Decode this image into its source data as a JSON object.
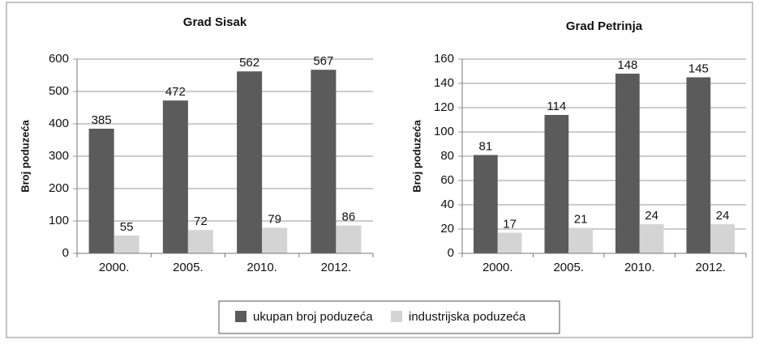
{
  "chart_data": [
    {
      "type": "bar",
      "title": "Grad Sisak",
      "y_label": "Broj poduzeća",
      "categories": [
        "2000.",
        "2005.",
        "2010.",
        "2012."
      ],
      "series": [
        {
          "name": "ukupan broj poduzeća",
          "color": "#5b5b5b",
          "values": [
            385,
            472,
            562,
            567
          ]
        },
        {
          "name": "industrijska poduzeća",
          "color": "#d4d4d4",
          "values": [
            55,
            72,
            79,
            86
          ]
        }
      ],
      "ylim": [
        0,
        600
      ],
      "yticks": [
        0,
        100,
        200,
        300,
        400,
        500,
        600
      ],
      "grid": true,
      "legend": "bottom"
    },
    {
      "type": "bar",
      "title": "Grad Petrinja",
      "y_label": "Broj poduzeća",
      "categories": [
        "2000.",
        "2005.",
        "2010.",
        "2012."
      ],
      "series": [
        {
          "name": "ukupan broj poduzeća",
          "color": "#5b5b5b",
          "values": [
            81,
            114,
            148,
            145
          ]
        },
        {
          "name": "industrijska poduzeća",
          "color": "#d4d4d4",
          "values": [
            17,
            21,
            24,
            24
          ]
        }
      ],
      "ylim": [
        0,
        160
      ],
      "yticks": [
        0,
        20,
        40,
        60,
        80,
        100,
        120,
        140,
        160
      ],
      "grid": true,
      "legend": "bottom"
    }
  ]
}
